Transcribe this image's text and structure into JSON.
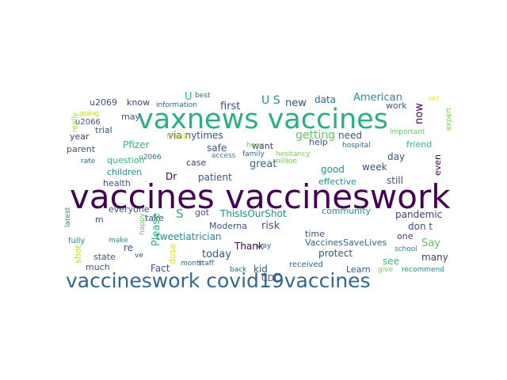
{
  "word_cloud": {
    "words": [
      {
        "text": "vaccines vaccineswork",
        "color": "#440154"
      },
      {
        "text": "vaxnews vaccines",
        "color": "#2ab07f"
      },
      {
        "text": "vaccineswork covid19vaccines",
        "color": "#31688e"
      },
      {
        "text": "via nytimes",
        "color": "#3b528b"
      },
      {
        "text": "getting",
        "color": "#5ec962"
      },
      {
        "text": "U S",
        "color": "#21918c"
      },
      {
        "text": "new",
        "color": "#3b528b"
      },
      {
        "text": "data",
        "color": "#31688e"
      },
      {
        "text": "American",
        "color": "#21918c"
      },
      {
        "text": "work",
        "color": "#3b528b"
      },
      {
        "text": "now",
        "color": "#440154"
      },
      {
        "text": "first",
        "color": "#3b528b"
      },
      {
        "text": "know",
        "color": "#443983"
      },
      {
        "text": "u2069",
        "color": "#3b528b"
      },
      {
        "text": "U",
        "color": "#35b779"
      },
      {
        "text": "best",
        "color": "#31688e"
      },
      {
        "text": "information",
        "color": "#31688e"
      },
      {
        "text": "really",
        "color": "#a0da39"
      },
      {
        "text": "going",
        "color": "#bddf26"
      },
      {
        "text": "u2066",
        "color": "#3b528b"
      },
      {
        "text": "trial",
        "color": "#3b528b"
      },
      {
        "text": "year",
        "color": "#443983"
      },
      {
        "text": "may",
        "color": "#3b528b"
      },
      {
        "text": "think",
        "color": "#dde318"
      },
      {
        "text": "Pfizer",
        "color": "#35b779"
      },
      {
        "text": "parent",
        "color": "#3b528b"
      },
      {
        "text": "u2066",
        "color": "#31688e"
      },
      {
        "text": "rate",
        "color": "#31688e"
      },
      {
        "text": "question",
        "color": "#35b779"
      },
      {
        "text": "safe",
        "color": "#3b528b"
      },
      {
        "text": "case",
        "color": "#443983"
      },
      {
        "text": "want",
        "color": "#443983"
      },
      {
        "text": "help",
        "color": "#3b528b"
      },
      {
        "text": "need",
        "color": "#3b528b"
      },
      {
        "text": "hospital",
        "color": "#31688e"
      },
      {
        "text": "friend",
        "color": "#35b779"
      },
      {
        "text": "important",
        "color": "#5ec962"
      },
      {
        "text": "vet",
        "color": "#fde725"
      },
      {
        "text": "expert",
        "color": "#7ad151"
      },
      {
        "text": "hope",
        "color": "#7ad151"
      },
      {
        "text": "family",
        "color": "#31688e"
      },
      {
        "text": "access",
        "color": "#21918c"
      },
      {
        "text": "hesitancy",
        "color": "#7ad151"
      },
      {
        "text": "million",
        "color": "#7ad151"
      },
      {
        "text": "children",
        "color": "#21918c"
      },
      {
        "text": "health",
        "color": "#3b528b"
      },
      {
        "text": "Dr",
        "color": "#440154"
      },
      {
        "text": "patient",
        "color": "#3b528b"
      },
      {
        "text": "great",
        "color": "#31688e"
      },
      {
        "text": "good",
        "color": "#21918c"
      },
      {
        "text": "effective",
        "color": "#21918c"
      },
      {
        "text": "week",
        "color": "#3b528b"
      },
      {
        "text": "still",
        "color": "#3b528b"
      },
      {
        "text": "day",
        "color": "#3b528b"
      },
      {
        "text": "even",
        "color": "#440154"
      },
      {
        "text": "everyone",
        "color": "#3b528b"
      },
      {
        "text": "m",
        "color": "#3b528b"
      },
      {
        "text": "latest",
        "color": "#21918c"
      },
      {
        "text": "fully",
        "color": "#21918c"
      },
      {
        "text": "make",
        "color": "#21918c"
      },
      {
        "text": "happy",
        "color": "#5ec962"
      },
      {
        "text": "S",
        "color": "#2ab07f"
      },
      {
        "text": "take",
        "color": "#3b528b"
      },
      {
        "text": "got",
        "color": "#3b528b"
      },
      {
        "text": "ThisIsOurShot",
        "color": "#21918c"
      },
      {
        "text": "community",
        "color": "#21918c"
      },
      {
        "text": "pandemic",
        "color": "#443983"
      },
      {
        "text": "don t",
        "color": "#3b528b"
      },
      {
        "text": "shot",
        "color": "#bddf26"
      },
      {
        "text": "re",
        "color": "#3b528b"
      },
      {
        "text": "Please",
        "color": "#35b779"
      },
      {
        "text": "risk",
        "color": "#3b528b"
      },
      {
        "text": "Moderna",
        "color": "#3b528b"
      },
      {
        "text": "VaccinesSaveLives",
        "color": "#31688e"
      },
      {
        "text": "time",
        "color": "#3b528b"
      },
      {
        "text": "one",
        "color": "#443983"
      },
      {
        "text": "Say",
        "color": "#5ec962"
      },
      {
        "text": "school",
        "color": "#21918c"
      },
      {
        "text": "ve",
        "color": "#3b528b"
      },
      {
        "text": "dose",
        "color": "#dde318"
      },
      {
        "text": "tweetiatrician",
        "color": "#21918c"
      },
      {
        "text": "state",
        "color": "#3b528b"
      },
      {
        "text": "month",
        "color": "#31688e"
      },
      {
        "text": "today",
        "color": "#3b528b"
      },
      {
        "text": "Thank",
        "color": "#440154"
      },
      {
        "text": "way",
        "color": "#31688e"
      },
      {
        "text": "protect",
        "color": "#3b528b"
      },
      {
        "text": "see",
        "color": "#35b779"
      },
      {
        "text": "many",
        "color": "#443983"
      },
      {
        "text": "much",
        "color": "#3b528b"
      },
      {
        "text": "Fact",
        "color": "#3b528b"
      },
      {
        "text": "staff",
        "color": "#31688e"
      },
      {
        "text": "CDC",
        "color": "#3b528b"
      },
      {
        "text": "kid",
        "color": "#3b528b"
      },
      {
        "text": "back",
        "color": "#31688e"
      },
      {
        "text": "received",
        "color": "#31688e"
      },
      {
        "text": "Learn",
        "color": "#3b528b"
      },
      {
        "text": "give",
        "color": "#7ad151"
      },
      {
        "text": "recommend",
        "color": "#21918c"
      }
    ]
  }
}
